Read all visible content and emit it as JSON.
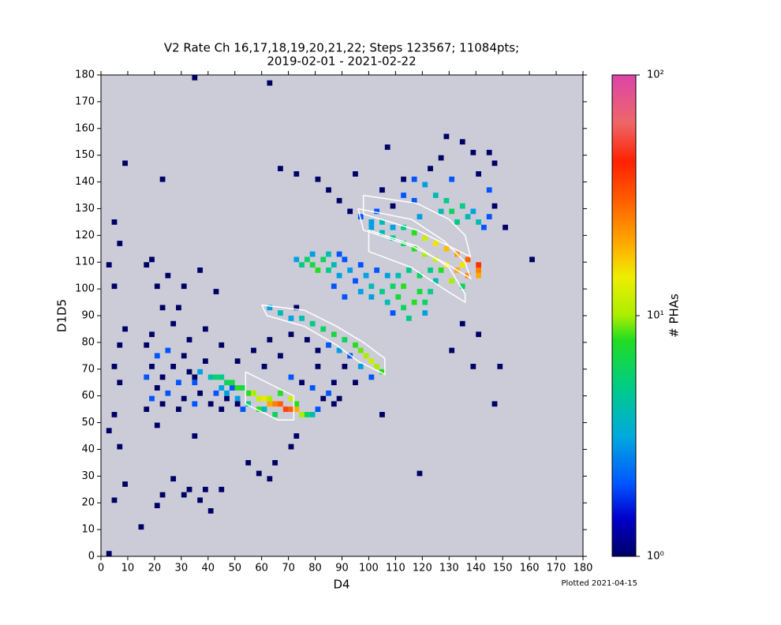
{
  "chart_data": {
    "type": "heatmap",
    "title": "V2 Rate Ch 16,17,18,19,20,21,22; Steps 123567; 11084pts;",
    "subtitle": "2019-02-01 - 2021-02-22",
    "xlabel": "D4",
    "ylabel": "D1D5",
    "colorbar_label": "# PHAs",
    "footnote": "Plotted 2021-04-15",
    "background": "#ccccd8",
    "xlim": [
      0,
      180
    ],
    "ylim": [
      0,
      180
    ],
    "xticks": [
      0,
      10,
      20,
      30,
      40,
      50,
      60,
      70,
      80,
      90,
      100,
      110,
      120,
      130,
      140,
      150,
      160,
      170,
      180
    ],
    "yticks": [
      0,
      10,
      20,
      30,
      40,
      50,
      60,
      70,
      80,
      90,
      100,
      110,
      120,
      130,
      140,
      150,
      160,
      170,
      180
    ],
    "clim": [
      1,
      100
    ],
    "color_log": true,
    "cticks": [
      {
        "value": 1,
        "label": "10⁰"
      },
      {
        "value": 10,
        "label": "10¹"
      },
      {
        "value": 100,
        "label": "10²"
      }
    ],
    "colormap": [
      [
        0,
        "#000066"
      ],
      [
        0.08,
        "#0000cc"
      ],
      [
        0.15,
        "#0055ff"
      ],
      [
        0.25,
        "#00aadd"
      ],
      [
        0.35,
        "#00cc88"
      ],
      [
        0.45,
        "#22dd22"
      ],
      [
        0.5,
        "#aaee00"
      ],
      [
        0.58,
        "#eeee00"
      ],
      [
        0.65,
        "#ffaa00"
      ],
      [
        0.75,
        "#ff5500"
      ],
      [
        0.82,
        "#ff2200"
      ],
      [
        0.9,
        "#ee6666"
      ],
      [
        1,
        "#dd44aa"
      ]
    ],
    "bin_size": 2,
    "region_color": "#ffffff",
    "points": [
      [
        16,
        54,
        1
      ],
      [
        18,
        58,
        2
      ],
      [
        20,
        62,
        1
      ],
      [
        16,
        66,
        2
      ],
      [
        18,
        70,
        1
      ],
      [
        20,
        74,
        2
      ],
      [
        16,
        78,
        1
      ],
      [
        18,
        82,
        1
      ],
      [
        22,
        56,
        1
      ],
      [
        24,
        60,
        2
      ],
      [
        22,
        66,
        1
      ],
      [
        26,
        70,
        1
      ],
      [
        24,
        76,
        2
      ],
      [
        28,
        54,
        1
      ],
      [
        30,
        58,
        1
      ],
      [
        28,
        64,
        2
      ],
      [
        32,
        68,
        1
      ],
      [
        30,
        74,
        1
      ],
      [
        34,
        56,
        2
      ],
      [
        36,
        60,
        1
      ],
      [
        34,
        66,
        1
      ],
      [
        38,
        72,
        1
      ],
      [
        40,
        56,
        1
      ],
      [
        42,
        60,
        2
      ],
      [
        44,
        54,
        1
      ],
      [
        46,
        58,
        1
      ],
      [
        48,
        62,
        2
      ],
      [
        50,
        56,
        1
      ],
      [
        52,
        54,
        2
      ],
      [
        26,
        86,
        1
      ],
      [
        32,
        80,
        1
      ],
      [
        22,
        92,
        1
      ],
      [
        38,
        84,
        1
      ],
      [
        44,
        78,
        1
      ],
      [
        50,
        72,
        1
      ],
      [
        56,
        76,
        1
      ],
      [
        60,
        70,
        1
      ],
      [
        62,
        80,
        1
      ],
      [
        66,
        74,
        1
      ],
      [
        70,
        66,
        2
      ],
      [
        74,
        64,
        1
      ],
      [
        78,
        62,
        2
      ],
      [
        82,
        58,
        1
      ],
      [
        84,
        60,
        2
      ],
      [
        86,
        64,
        1
      ],
      [
        88,
        58,
        1
      ],
      [
        80,
        70,
        1
      ],
      [
        20,
        100,
        1
      ],
      [
        24,
        104,
        1
      ],
      [
        18,
        110,
        1
      ],
      [
        30,
        100,
        1
      ],
      [
        36,
        106,
        1
      ],
      [
        42,
        98,
        1
      ],
      [
        16,
        108,
        1
      ],
      [
        28,
        92,
        1
      ],
      [
        40,
        66,
        4
      ],
      [
        42,
        66,
        6
      ],
      [
        44,
        66,
        5
      ],
      [
        46,
        64,
        6
      ],
      [
        48,
        64,
        7
      ],
      [
        50,
        62,
        8
      ],
      [
        52,
        62,
        7
      ],
      [
        54,
        60,
        8
      ],
      [
        56,
        60,
        10
      ],
      [
        58,
        58,
        12
      ],
      [
        60,
        58,
        15
      ],
      [
        62,
        56,
        20
      ],
      [
        64,
        56,
        25
      ],
      [
        66,
        56,
        30
      ],
      [
        68,
        54,
        35
      ],
      [
        70,
        54,
        30
      ],
      [
        72,
        54,
        20
      ],
      [
        74,
        52,
        10
      ],
      [
        76,
        52,
        6
      ],
      [
        78,
        52,
        4
      ],
      [
        58,
        54,
        8
      ],
      [
        62,
        58,
        10
      ],
      [
        66,
        60,
        8
      ],
      [
        64,
        52,
        6
      ],
      [
        54,
        56,
        5
      ],
      [
        46,
        60,
        3
      ],
      [
        70,
        58,
        12
      ],
      [
        72,
        56,
        8
      ],
      [
        60,
        54,
        4
      ],
      [
        50,
        58,
        3
      ],
      [
        44,
        62,
        3
      ],
      [
        80,
        54,
        2
      ],
      [
        36,
        68,
        3
      ],
      [
        34,
        64,
        2
      ],
      [
        62,
        92,
        3
      ],
      [
        66,
        90,
        4
      ],
      [
        70,
        88,
        3
      ],
      [
        74,
        88,
        4
      ],
      [
        78,
        86,
        5
      ],
      [
        82,
        84,
        6
      ],
      [
        86,
        82,
        7
      ],
      [
        90,
        80,
        6
      ],
      [
        94,
        78,
        8
      ],
      [
        96,
        76,
        9
      ],
      [
        98,
        74,
        10
      ],
      [
        100,
        72,
        12
      ],
      [
        102,
        70,
        10
      ],
      [
        104,
        68,
        8
      ],
      [
        88,
        76,
        3
      ],
      [
        92,
        74,
        2
      ],
      [
        84,
        78,
        2
      ],
      [
        96,
        70,
        3
      ],
      [
        100,
        66,
        2
      ],
      [
        70,
        82,
        1
      ],
      [
        76,
        80,
        1
      ],
      [
        90,
        70,
        1
      ],
      [
        94,
        64,
        1
      ],
      [
        86,
        56,
        1
      ],
      [
        104,
        52,
        1
      ],
      [
        72,
        92,
        1
      ],
      [
        80,
        76,
        1
      ],
      [
        72,
        110,
        3
      ],
      [
        74,
        108,
        5
      ],
      [
        76,
        110,
        6
      ],
      [
        78,
        108,
        7
      ],
      [
        80,
        106,
        8
      ],
      [
        82,
        110,
        6
      ],
      [
        84,
        106,
        5
      ],
      [
        86,
        108,
        4
      ],
      [
        88,
        104,
        3
      ],
      [
        90,
        110,
        2
      ],
      [
        92,
        106,
        3
      ],
      [
        94,
        102,
        2
      ],
      [
        96,
        108,
        2
      ],
      [
        98,
        104,
        3
      ],
      [
        84,
        112,
        4
      ],
      [
        78,
        112,
        3
      ],
      [
        88,
        112,
        2
      ],
      [
        86,
        100,
        2
      ],
      [
        90,
        96,
        2
      ],
      [
        96,
        98,
        3
      ],
      [
        100,
        96,
        3
      ],
      [
        100,
        100,
        4
      ],
      [
        104,
        98,
        5
      ],
      [
        106,
        94,
        4
      ],
      [
        108,
        100,
        6
      ],
      [
        110,
        96,
        7
      ],
      [
        112,
        92,
        6
      ],
      [
        114,
        88,
        5
      ],
      [
        116,
        94,
        8
      ],
      [
        118,
        98,
        7
      ],
      [
        120,
        94,
        6
      ],
      [
        122,
        98,
        5
      ],
      [
        124,
        102,
        4
      ],
      [
        110,
        104,
        4
      ],
      [
        114,
        106,
        5
      ],
      [
        106,
        104,
        3
      ],
      [
        112,
        100,
        8
      ],
      [
        118,
        104,
        6
      ],
      [
        102,
        106,
        2
      ],
      [
        108,
        90,
        2
      ],
      [
        120,
        90,
        3
      ],
      [
        100,
        122,
        3
      ],
      [
        104,
        120,
        4
      ],
      [
        108,
        118,
        5
      ],
      [
        112,
        116,
        6
      ],
      [
        116,
        114,
        8
      ],
      [
        120,
        112,
        10
      ],
      [
        124,
        110,
        12
      ],
      [
        128,
        108,
        15
      ],
      [
        132,
        106,
        20
      ],
      [
        136,
        104,
        25
      ],
      [
        140,
        104,
        20
      ],
      [
        126,
        106,
        8
      ],
      [
        130,
        102,
        10
      ],
      [
        134,
        100,
        6
      ],
      [
        122,
        106,
        5
      ],
      [
        96,
        126,
        2
      ],
      [
        100,
        124,
        3
      ],
      [
        104,
        124,
        4
      ],
      [
        108,
        122,
        3
      ],
      [
        112,
        122,
        5
      ],
      [
        116,
        120,
        8
      ],
      [
        120,
        118,
        12
      ],
      [
        124,
        116,
        15
      ],
      [
        128,
        114,
        18
      ],
      [
        132,
        112,
        22
      ],
      [
        136,
        110,
        30
      ],
      [
        140,
        108,
        40
      ],
      [
        140,
        106,
        25
      ],
      [
        134,
        108,
        15
      ],
      [
        108,
        130,
        1
      ],
      [
        112,
        134,
        2
      ],
      [
        116,
        132,
        2
      ],
      [
        120,
        138,
        3
      ],
      [
        124,
        134,
        4
      ],
      [
        128,
        132,
        5
      ],
      [
        130,
        128,
        6
      ],
      [
        134,
        130,
        5
      ],
      [
        136,
        126,
        4
      ],
      [
        138,
        128,
        3
      ],
      [
        140,
        124,
        4
      ],
      [
        142,
        122,
        2
      ],
      [
        144,
        126,
        2
      ],
      [
        118,
        126,
        3
      ],
      [
        126,
        128,
        4
      ],
      [
        132,
        124,
        5
      ],
      [
        130,
        140,
        2
      ],
      [
        126,
        148,
        1
      ],
      [
        134,
        154,
        1
      ],
      [
        138,
        150,
        1
      ],
      [
        144,
        150,
        1
      ],
      [
        146,
        146,
        1
      ],
      [
        144,
        136,
        2
      ],
      [
        146,
        130,
        1
      ],
      [
        150,
        122,
        1
      ],
      [
        122,
        144,
        1
      ],
      [
        116,
        140,
        2
      ],
      [
        112,
        140,
        1
      ],
      [
        104,
        136,
        1
      ],
      [
        102,
        128,
        2
      ],
      [
        92,
        128,
        1
      ],
      [
        88,
        132,
        1
      ],
      [
        84,
        136,
        1
      ],
      [
        80,
        140,
        1
      ],
      [
        72,
        142,
        1
      ],
      [
        66,
        144,
        1
      ],
      [
        94,
        142,
        1
      ],
      [
        128,
        156,
        1
      ],
      [
        106,
        152,
        1
      ],
      [
        140,
        142,
        1
      ],
      [
        4,
        124,
        1
      ],
      [
        6,
        116,
        1
      ],
      [
        2,
        108,
        1
      ],
      [
        4,
        100,
        1
      ],
      [
        8,
        84,
        1
      ],
      [
        6,
        78,
        1
      ],
      [
        4,
        70,
        1
      ],
      [
        6,
        64,
        1
      ],
      [
        4,
        52,
        1
      ],
      [
        2,
        46,
        1
      ],
      [
        6,
        40,
        1
      ],
      [
        8,
        26,
        1
      ],
      [
        4,
        20,
        1
      ],
      [
        14,
        10,
        1
      ],
      [
        20,
        18,
        1
      ],
      [
        22,
        22,
        1
      ],
      [
        26,
        28,
        1
      ],
      [
        30,
        22,
        1
      ],
      [
        32,
        24,
        1
      ],
      [
        36,
        20,
        1
      ],
      [
        38,
        24,
        1
      ],
      [
        40,
        16,
        1
      ],
      [
        44,
        24,
        1
      ],
      [
        54,
        34,
        1
      ],
      [
        58,
        30,
        1
      ],
      [
        62,
        28,
        1
      ],
      [
        64,
        34,
        1
      ],
      [
        70,
        40,
        1
      ],
      [
        72,
        44,
        1
      ],
      [
        34,
        44,
        1
      ],
      [
        20,
        48,
        1
      ],
      [
        2,
        0,
        1
      ],
      [
        34,
        178,
        1
      ],
      [
        62,
        176,
        1
      ],
      [
        8,
        146,
        1
      ],
      [
        22,
        140,
        1
      ],
      [
        160,
        110,
        1
      ],
      [
        134,
        86,
        1
      ],
      [
        140,
        82,
        1
      ],
      [
        148,
        70,
        1
      ],
      [
        146,
        56,
        1
      ],
      [
        138,
        70,
        1
      ],
      [
        118,
        30,
        1
      ],
      [
        130,
        76,
        1
      ]
    ],
    "regions": [
      [
        [
          54,
          69
        ],
        [
          64,
          64
        ],
        [
          72,
          60
        ],
        [
          72,
          51
        ],
        [
          66,
          51
        ],
        [
          54,
          57
        ],
        [
          54,
          69
        ]
      ],
      [
        [
          60,
          94
        ],
        [
          76,
          92
        ],
        [
          88,
          86
        ],
        [
          98,
          80
        ],
        [
          106,
          74
        ],
        [
          106,
          68
        ],
        [
          96,
          73
        ],
        [
          88,
          79
        ],
        [
          76,
          86
        ],
        [
          62,
          90
        ],
        [
          60,
          94
        ]
      ],
      [
        [
          98,
          135
        ],
        [
          118,
          132
        ],
        [
          130,
          126
        ],
        [
          136,
          120
        ],
        [
          138,
          112
        ],
        [
          130,
          116
        ],
        [
          118,
          122
        ],
        [
          98,
          128
        ],
        [
          98,
          135
        ]
      ],
      [
        [
          96,
          130
        ],
        [
          116,
          126
        ],
        [
          128,
          118
        ],
        [
          136,
          110
        ],
        [
          138,
          104
        ],
        [
          128,
          110
        ],
        [
          116,
          116
        ],
        [
          98,
          122
        ],
        [
          96,
          130
        ]
      ],
      [
        [
          100,
          122
        ],
        [
          118,
          116
        ],
        [
          130,
          108
        ],
        [
          136,
          98
        ],
        [
          136,
          95
        ],
        [
          128,
          100
        ],
        [
          116,
          108
        ],
        [
          100,
          114
        ],
        [
          100,
          122
        ]
      ]
    ]
  }
}
